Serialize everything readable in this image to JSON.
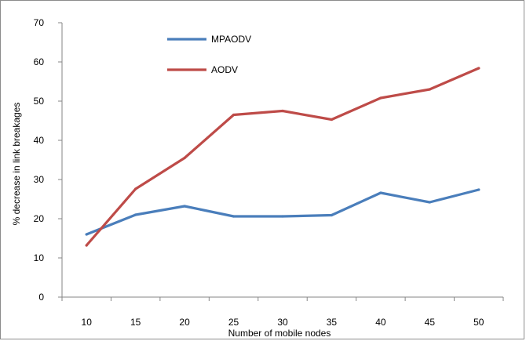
{
  "chart_data": {
    "type": "line",
    "title": "",
    "xlabel": "Number of mobile nodes",
    "ylabel": "% decrease in link breakages",
    "x": [
      10,
      15,
      20,
      25,
      30,
      35,
      40,
      45,
      50
    ],
    "categories": [
      "10",
      "15",
      "20",
      "25",
      "30",
      "35",
      "40",
      "45",
      "50"
    ],
    "ylim": [
      0,
      70
    ],
    "yticks": [
      0,
      10,
      20,
      30,
      40,
      50,
      60,
      70
    ],
    "grid": false,
    "legend_position": "top-left",
    "series": [
      {
        "name": "MPAODV",
        "color": "#4a7ebb",
        "values": [
          16,
          21,
          23.2,
          20.6,
          20.6,
          20.9,
          26.6,
          24.2,
          27.4
        ]
      },
      {
        "name": "AODV",
        "color": "#be4b48",
        "values": [
          13.2,
          27.6,
          35.5,
          46.5,
          47.5,
          45.3,
          50.8,
          53,
          58.4
        ]
      }
    ]
  }
}
